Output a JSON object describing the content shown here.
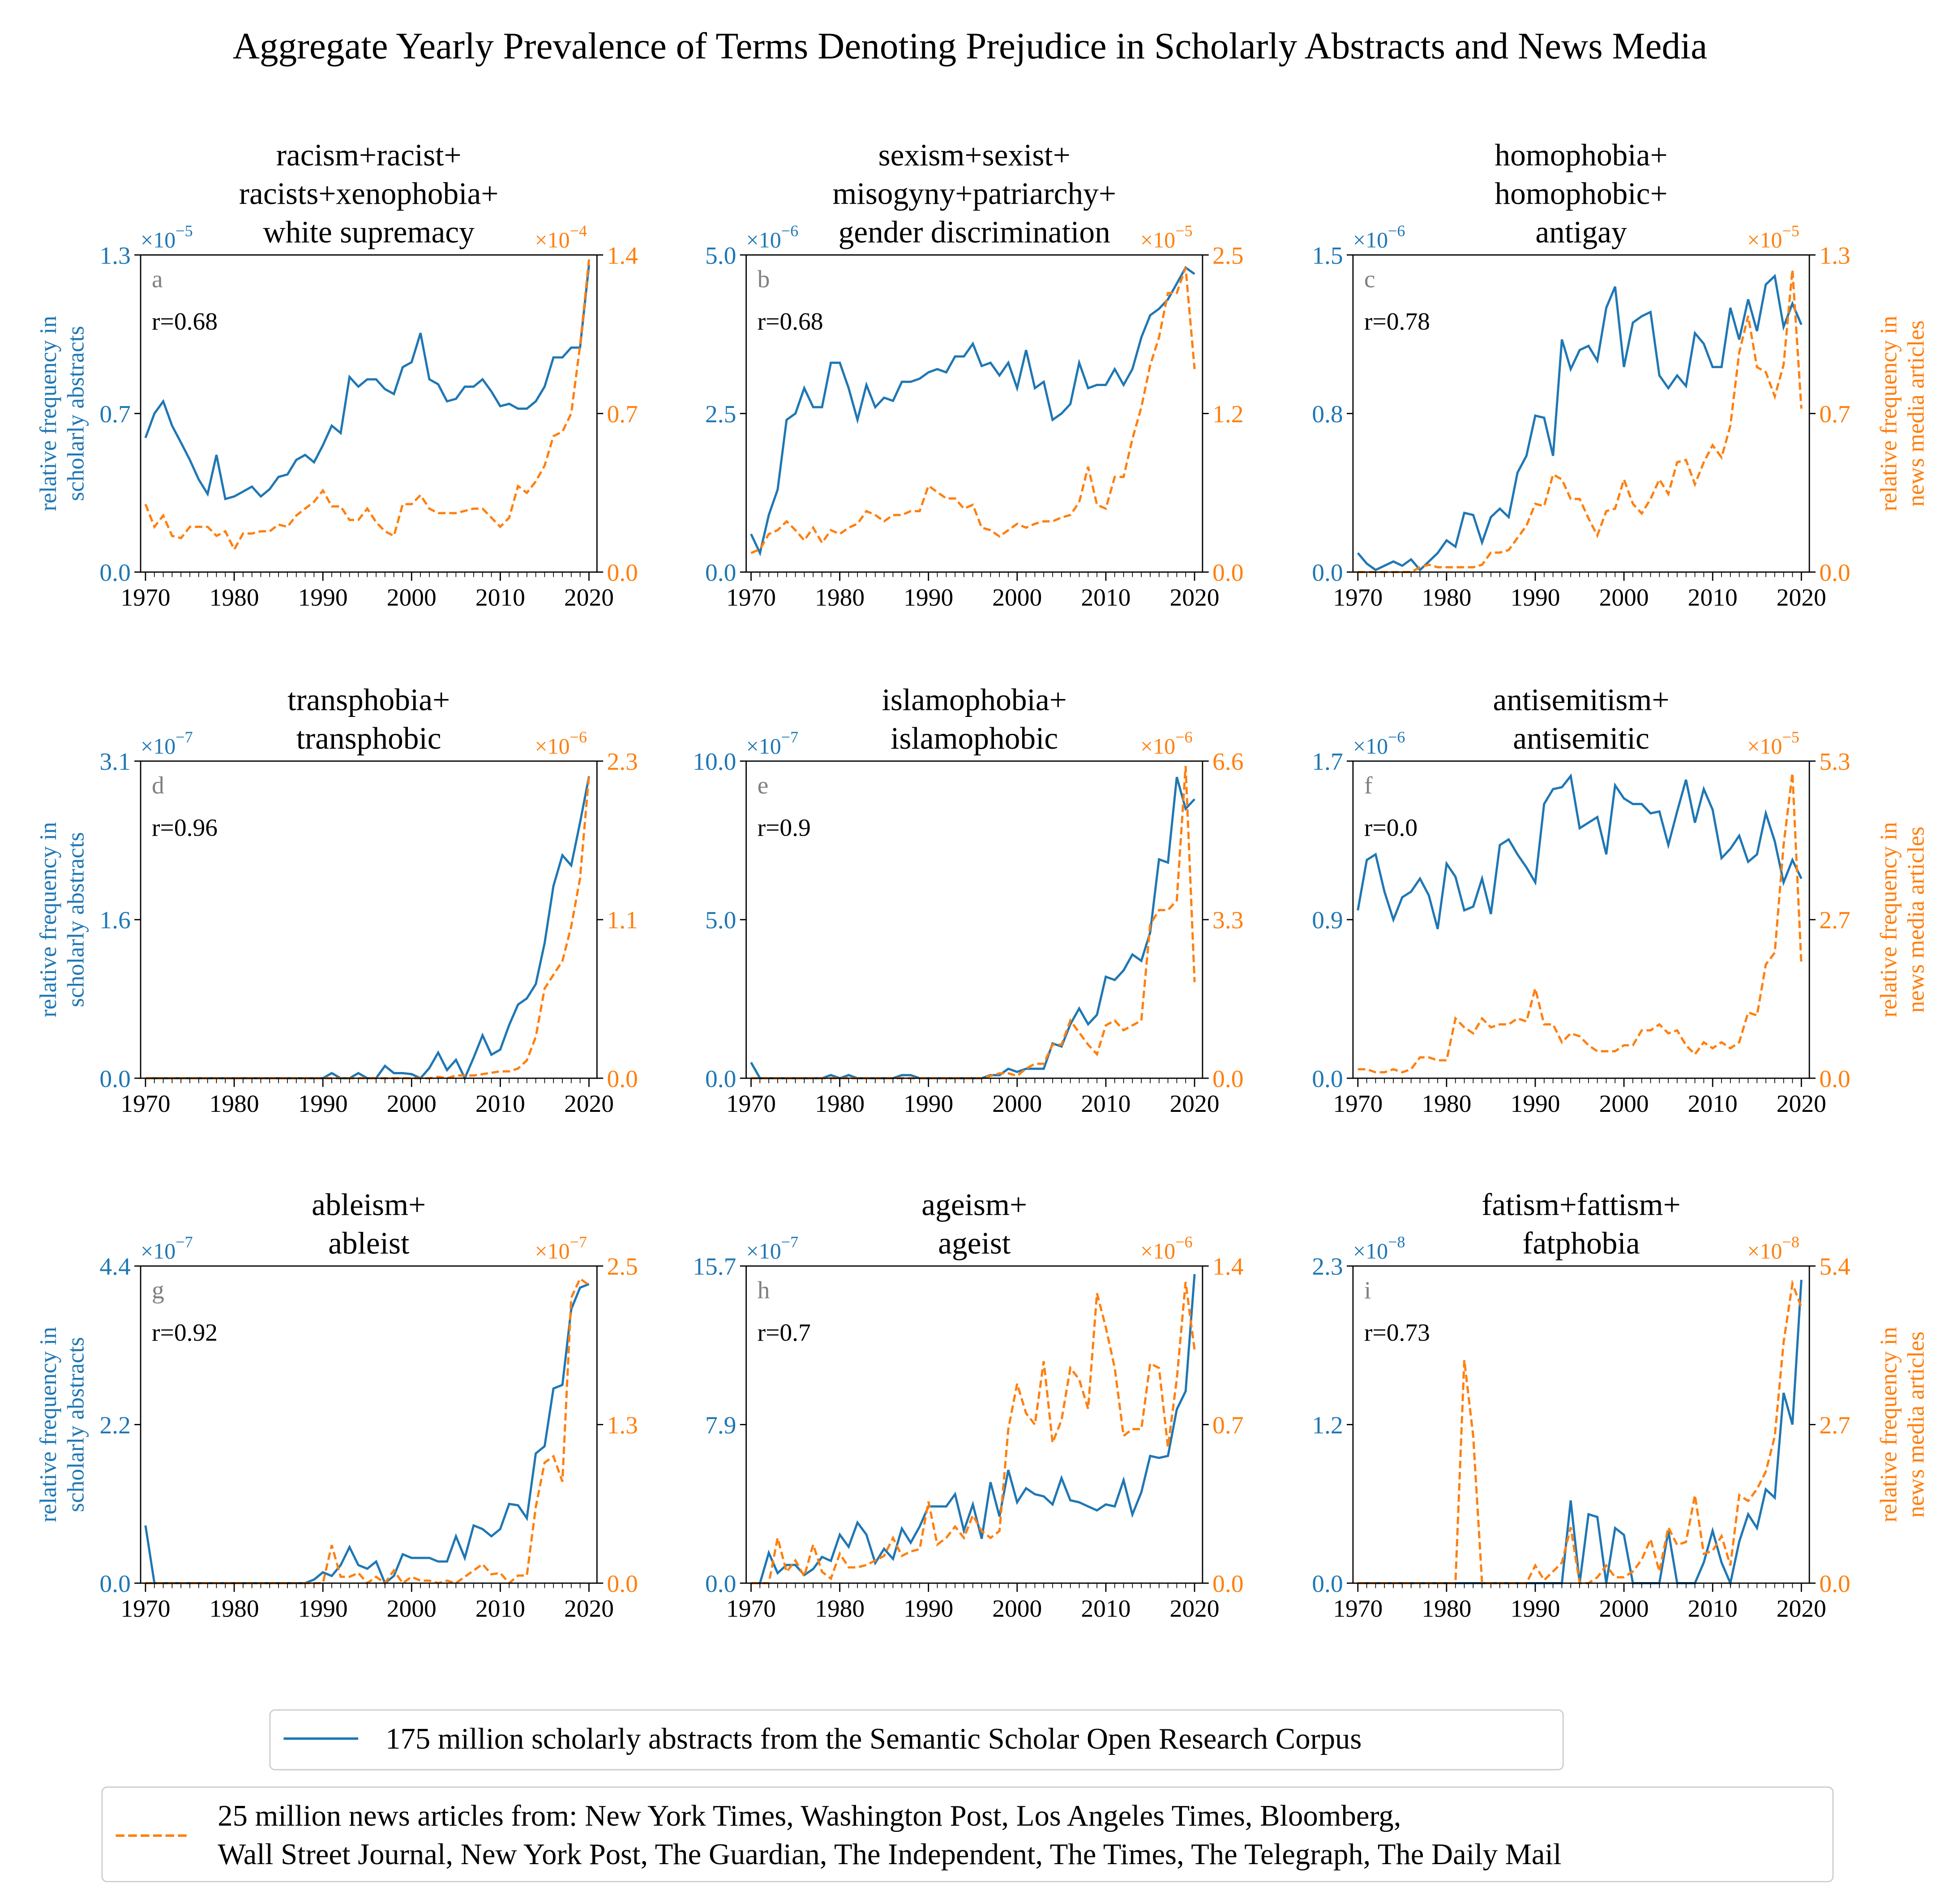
{
  "title": "Aggregate Yearly Prevalence of Terms Denoting Prejudice in Scholarly Abstracts and News Media",
  "colors": {
    "scholarly": "#1f77b4",
    "news": "#ff7f0e",
    "panel_letter": "#808080"
  },
  "axis_labels": {
    "left": [
      "relative frequency in",
      "scholarly abstracts"
    ],
    "right": [
      "relative frequency in",
      "news media articles"
    ]
  },
  "legend": {
    "scholarly": [
      "175 million scholarly abstracts from the Semantic Scholar Open Research Corpus"
    ],
    "news": [
      "25 million news articles from: New York Times, Washington Post, Los Angeles Times, Bloomberg,",
      "Wall Street Journal, New York Post, The Guardian, The Independent, The Times, The Telegraph, The Daily Mail"
    ]
  },
  "years": [
    1970,
    1971,
    1972,
    1973,
    1974,
    1975,
    1976,
    1977,
    1978,
    1979,
    1980,
    1981,
    1982,
    1983,
    1984,
    1985,
    1986,
    1987,
    1988,
    1989,
    1990,
    1991,
    1992,
    1993,
    1994,
    1995,
    1996,
    1997,
    1998,
    1999,
    2000,
    2001,
    2002,
    2003,
    2004,
    2005,
    2006,
    2007,
    2008,
    2009,
    2010,
    2011,
    2012,
    2013,
    2014,
    2015,
    2016,
    2017,
    2018,
    2019,
    2020
  ],
  "x_ticks": [
    "1970",
    "1980",
    "1990",
    "2000",
    "2010",
    "2020"
  ],
  "chart_data": [
    {
      "type": "line",
      "letter": "a",
      "r": "r=0.68",
      "title": [
        "racism+racist+",
        "racists+xenophobia+",
        "white supremacy"
      ],
      "left": {
        "exponent": "−5",
        "ticks": [
          "0.0",
          "0.7",
          "1.3"
        ],
        "ylim": [
          0,
          1.3
        ]
      },
      "right": {
        "exponent": "−4",
        "ticks": [
          "0.0",
          "0.7",
          "1.4"
        ],
        "ylim": [
          0,
          1.4
        ]
      },
      "scholarly": [
        0.55,
        0.65,
        0.7,
        0.6,
        0.53,
        0.46,
        0.38,
        0.32,
        0.48,
        0.3,
        0.31,
        0.33,
        0.35,
        0.31,
        0.34,
        0.39,
        0.4,
        0.46,
        0.48,
        0.45,
        0.52,
        0.6,
        0.57,
        0.8,
        0.76,
        0.79,
        0.79,
        0.75,
        0.73,
        0.84,
        0.86,
        0.98,
        0.79,
        0.77,
        0.7,
        0.71,
        0.76,
        0.76,
        0.79,
        0.74,
        0.68,
        0.69,
        0.67,
        0.67,
        0.7,
        0.76,
        0.88,
        0.88,
        0.92,
        0.92,
        1.26
      ],
      "news": [
        0.3,
        0.2,
        0.25,
        0.16,
        0.15,
        0.2,
        0.2,
        0.2,
        0.16,
        0.18,
        0.1,
        0.17,
        0.17,
        0.18,
        0.18,
        0.21,
        0.2,
        0.25,
        0.28,
        0.31,
        0.36,
        0.29,
        0.29,
        0.23,
        0.23,
        0.28,
        0.22,
        0.18,
        0.16,
        0.3,
        0.3,
        0.34,
        0.28,
        0.26,
        0.26,
        0.26,
        0.27,
        0.28,
        0.28,
        0.24,
        0.2,
        0.24,
        0.38,
        0.35,
        0.4,
        0.47,
        0.6,
        0.62,
        0.7,
        1.0,
        1.38
      ]
    },
    {
      "type": "line",
      "letter": "b",
      "r": "r=0.68",
      "title": [
        "sexism+sexist+",
        "misogyny+patriarchy+",
        "gender discrimination"
      ],
      "left": {
        "exponent": "−6",
        "ticks": [
          "0.0",
          "2.5",
          "5.0"
        ],
        "ylim": [
          0,
          5.0
        ]
      },
      "right": {
        "exponent": "−5",
        "ticks": [
          "0.0",
          "1.2",
          "2.5"
        ],
        "ylim": [
          0,
          2.5
        ]
      },
      "scholarly": [
        0.6,
        0.3,
        0.9,
        1.3,
        2.4,
        2.5,
        2.9,
        2.6,
        2.6,
        3.3,
        3.3,
        2.9,
        2.4,
        2.95,
        2.6,
        2.75,
        2.7,
        3.0,
        3.0,
        3.05,
        3.15,
        3.2,
        3.15,
        3.4,
        3.4,
        3.6,
        3.25,
        3.3,
        3.1,
        3.3,
        2.9,
        3.5,
        2.9,
        3.0,
        2.4,
        2.5,
        2.65,
        3.3,
        2.9,
        2.95,
        2.95,
        3.2,
        2.95,
        3.2,
        3.7,
        4.05,
        4.15,
        4.3,
        4.55,
        4.8,
        4.7
      ],
      "news": [
        0.15,
        0.18,
        0.3,
        0.33,
        0.4,
        0.33,
        0.25,
        0.35,
        0.23,
        0.33,
        0.3,
        0.35,
        0.38,
        0.48,
        0.45,
        0.4,
        0.45,
        0.45,
        0.48,
        0.48,
        0.68,
        0.63,
        0.58,
        0.58,
        0.5,
        0.53,
        0.35,
        0.33,
        0.28,
        0.33,
        0.38,
        0.35,
        0.38,
        0.4,
        0.4,
        0.43,
        0.45,
        0.55,
        0.83,
        0.53,
        0.5,
        0.75,
        0.75,
        1.05,
        1.3,
        1.63,
        1.85,
        2.2,
        2.2,
        2.4,
        1.6
      ]
    },
    {
      "type": "line",
      "letter": "c",
      "r": "r=0.78",
      "title": [
        "homophobia+",
        "homophobic+",
        "antigay"
      ],
      "left": {
        "exponent": "−6",
        "ticks": [
          "0.0",
          "0.8",
          "1.5"
        ],
        "ylim": [
          0,
          1.5
        ]
      },
      "right": {
        "exponent": "−5",
        "ticks": [
          "0.0",
          "0.7",
          "1.3"
        ],
        "ylim": [
          0,
          1.3
        ]
      },
      "scholarly": [
        0.09,
        0.04,
        0.01,
        0.03,
        0.05,
        0.03,
        0.06,
        0.01,
        0.05,
        0.09,
        0.15,
        0.12,
        0.28,
        0.27,
        0.14,
        0.26,
        0.3,
        0.26,
        0.47,
        0.55,
        0.74,
        0.73,
        0.55,
        1.1,
        0.96,
        1.05,
        1.07,
        1.0,
        1.25,
        1.35,
        0.97,
        1.18,
        1.21,
        1.23,
        0.93,
        0.87,
        0.93,
        0.88,
        1.13,
        1.08,
        0.97,
        0.97,
        1.25,
        1.1,
        1.29,
        1.14,
        1.36,
        1.4,
        1.16,
        1.27,
        1.17
      ],
      "news": [
        0,
        0,
        0,
        0,
        0,
        0,
        0,
        0.02,
        0.03,
        0.02,
        0.02,
        0.02,
        0.02,
        0.02,
        0.03,
        0.08,
        0.08,
        0.09,
        0.14,
        0.19,
        0.28,
        0.27,
        0.4,
        0.38,
        0.3,
        0.3,
        0.22,
        0.15,
        0.25,
        0.26,
        0.38,
        0.28,
        0.24,
        0.3,
        0.38,
        0.32,
        0.45,
        0.46,
        0.36,
        0.45,
        0.52,
        0.47,
        0.6,
        0.9,
        1.05,
        0.84,
        0.82,
        0.72,
        0.85,
        1.24,
        0.67
      ]
    },
    {
      "type": "line",
      "letter": "d",
      "r": "r=0.96",
      "title": [
        "transphobia+",
        "transphobic"
      ],
      "left": {
        "exponent": "−7",
        "ticks": [
          "0.0",
          "1.6",
          "3.1"
        ],
        "ylim": [
          0,
          3.1
        ]
      },
      "right": {
        "exponent": "−6",
        "ticks": [
          "0.0",
          "1.1",
          "2.3"
        ],
        "ylim": [
          0,
          2.3
        ]
      },
      "scholarly": [
        0,
        0,
        0,
        0,
        0,
        0,
        0,
        0,
        0,
        0,
        0,
        0,
        0,
        0,
        0,
        0,
        0,
        0,
        0,
        0,
        0,
        0.05,
        0,
        0,
        0.05,
        0,
        0,
        0.12,
        0.05,
        0.05,
        0.04,
        0,
        0.1,
        0.25,
        0.08,
        0.18,
        0,
        0.2,
        0.42,
        0.23,
        0.28,
        0.52,
        0.72,
        0.78,
        0.92,
        1.32,
        1.88,
        2.18,
        2.08,
        2.5,
        2.95
      ],
      "news": [
        0,
        0,
        0,
        0,
        0,
        0,
        0,
        0,
        0,
        0,
        0,
        0,
        0,
        0,
        0,
        0,
        0,
        0,
        0,
        0,
        0,
        0,
        0,
        0,
        0,
        0,
        0,
        0,
        0,
        0,
        0,
        0,
        0,
        0.01,
        0,
        0.02,
        0.02,
        0.02,
        0.03,
        0.04,
        0.05,
        0.05,
        0.07,
        0.13,
        0.3,
        0.65,
        0.75,
        0.85,
        1.1,
        1.45,
        2.2
      ]
    },
    {
      "type": "line",
      "letter": "e",
      "r": "r=0.9",
      "title": [
        "islamophobia+",
        "islamophobic"
      ],
      "left": {
        "exponent": "−7",
        "ticks": [
          "0.0",
          "5.0",
          "10.0"
        ],
        "ylim": [
          0,
          10.0
        ]
      },
      "right": {
        "exponent": "−6",
        "ticks": [
          "0.0",
          "3.3",
          "6.6"
        ],
        "ylim": [
          0,
          6.6
        ]
      },
      "scholarly": [
        0.5,
        0,
        0,
        0,
        0,
        0,
        0,
        0,
        0,
        0.1,
        0,
        0.1,
        0,
        0,
        0,
        0,
        0,
        0.1,
        0.1,
        0,
        0,
        0,
        0,
        0,
        0,
        0,
        0,
        0.1,
        0.1,
        0.3,
        0.2,
        0.3,
        0.3,
        0.3,
        1.1,
        1.0,
        1.7,
        2.2,
        1.7,
        2.0,
        3.2,
        3.1,
        3.4,
        3.9,
        3.7,
        4.6,
        6.9,
        6.8,
        9.5,
        8.5,
        8.8
      ],
      "news": [
        0,
        0,
        0,
        0,
        0,
        0,
        0,
        0,
        0,
        0,
        0,
        0,
        0,
        0,
        0,
        0,
        0,
        0,
        0,
        0,
        0,
        0,
        0,
        0,
        0,
        0,
        0,
        0.05,
        0.1,
        0.1,
        0.05,
        0.2,
        0.3,
        0.3,
        0.7,
        0.7,
        1.2,
        0.95,
        0.7,
        0.5,
        1.1,
        1.2,
        1.0,
        1.1,
        1.2,
        3.2,
        3.5,
        3.5,
        3.7,
        6.5,
        2.0
      ]
    },
    {
      "type": "line",
      "letter": "f",
      "r": "r=0.0",
      "title": [
        "antisemitism+",
        "antisemitic"
      ],
      "left": {
        "exponent": "−6",
        "ticks": [
          "0.0",
          "0.9",
          "1.7"
        ],
        "ylim": [
          0,
          1.7
        ]
      },
      "right": {
        "exponent": "−5",
        "ticks": [
          "0.0",
          "2.7",
          "5.3"
        ],
        "ylim": [
          0,
          5.3
        ]
      },
      "scholarly": [
        0.9,
        1.17,
        1.2,
        1.0,
        0.85,
        0.97,
        1.0,
        1.07,
        0.98,
        0.8,
        1.15,
        1.08,
        0.9,
        0.92,
        1.07,
        0.88,
        1.25,
        1.28,
        1.2,
        1.13,
        1.05,
        1.47,
        1.55,
        1.56,
        1.62,
        1.34,
        1.37,
        1.4,
        1.2,
        1.57,
        1.5,
        1.47,
        1.47,
        1.42,
        1.43,
        1.25,
        1.43,
        1.6,
        1.37,
        1.55,
        1.44,
        1.18,
        1.23,
        1.3,
        1.16,
        1.2,
        1.42,
        1.27,
        1.05,
        1.17,
        1.07
      ],
      "news": [
        0.15,
        0.15,
        0.1,
        0.1,
        0.15,
        0.1,
        0.15,
        0.35,
        0.35,
        0.3,
        0.3,
        1.0,
        0.85,
        0.75,
        1.0,
        0.85,
        0.9,
        0.9,
        1.0,
        0.95,
        1.5,
        0.9,
        0.9,
        0.6,
        0.75,
        0.7,
        0.55,
        0.45,
        0.45,
        0.45,
        0.55,
        0.55,
        0.8,
        0.8,
        0.9,
        0.75,
        0.8,
        0.55,
        0.4,
        0.6,
        0.5,
        0.6,
        0.5,
        0.6,
        1.1,
        1.05,
        1.9,
        2.1,
        3.9,
        5.1,
        1.9
      ]
    },
    {
      "type": "line",
      "letter": "g",
      "r": "r=0.92",
      "title": [
        "ableism+",
        "ableist"
      ],
      "left": {
        "exponent": "−7",
        "ticks": [
          "0.0",
          "2.2",
          "4.4"
        ],
        "ylim": [
          0,
          4.4
        ]
      },
      "right": {
        "exponent": "−7",
        "ticks": [
          "0.0",
          "1.3",
          "2.5"
        ],
        "ylim": [
          0,
          2.5
        ]
      },
      "scholarly": [
        0.8,
        0,
        0,
        0,
        0,
        0,
        0,
        0,
        0,
        0,
        0,
        0,
        0,
        0,
        0,
        0,
        0,
        0,
        0,
        0.05,
        0.15,
        0.1,
        0.25,
        0.5,
        0.25,
        0.2,
        0.3,
        0,
        0.1,
        0.4,
        0.35,
        0.35,
        0.35,
        0.3,
        0.3,
        0.65,
        0.35,
        0.8,
        0.75,
        0.65,
        0.75,
        1.1,
        1.08,
        0.9,
        1.8,
        1.9,
        2.7,
        2.75,
        3.8,
        4.1,
        4.15
      ],
      "news": [
        0,
        0,
        0,
        0,
        0,
        0,
        0,
        0,
        0,
        0,
        0,
        0,
        0,
        0,
        0,
        0,
        0,
        0,
        0,
        0,
        0,
        0.3,
        0.05,
        0.05,
        0.08,
        0,
        0.05,
        0,
        0.1,
        0,
        0.05,
        0.02,
        0.02,
        0,
        0.02,
        0,
        0.05,
        0.1,
        0.15,
        0.07,
        0.08,
        0,
        0.06,
        0.06,
        0.6,
        0.95,
        1.0,
        0.8,
        2.25,
        2.4,
        2.35
      ]
    },
    {
      "type": "line",
      "letter": "h",
      "r": "r=0.7",
      "title": [
        "ageism+",
        "ageist"
      ],
      "left": {
        "exponent": "−7",
        "ticks": [
          "0.0",
          "7.9",
          "15.7"
        ],
        "ylim": [
          0,
          15.7
        ]
      },
      "right": {
        "exponent": "−6",
        "ticks": [
          "0.0",
          "0.7",
          "1.4"
        ],
        "ylim": [
          0,
          1.4
        ]
      },
      "scholarly": [
        0,
        0,
        1.5,
        0.5,
        0.9,
        0.9,
        0.4,
        0.7,
        1.3,
        1.1,
        2.4,
        1.8,
        3.0,
        2.4,
        1.0,
        1.7,
        1.2,
        2.7,
        2.0,
        2.8,
        3.8,
        3.8,
        3.8,
        4.4,
        2.6,
        3.9,
        2.2,
        5.0,
        3.3,
        5.6,
        4.0,
        4.7,
        4.4,
        4.3,
        3.9,
        5.2,
        4.1,
        4.0,
        3.8,
        3.6,
        3.9,
        3.8,
        5.1,
        3.4,
        4.5,
        6.3,
        6.2,
        6.3,
        8.6,
        9.5,
        15.3
      ],
      "news": [
        0,
        0,
        0,
        0.2,
        0.05,
        0.1,
        0.03,
        0.17,
        0.05,
        0.02,
        0.13,
        0.07,
        0.07,
        0.08,
        0.1,
        0.12,
        0.2,
        0.12,
        0.14,
        0.15,
        0.36,
        0.17,
        0.2,
        0.25,
        0.2,
        0.3,
        0.23,
        0.2,
        0.23,
        0.68,
        0.88,
        0.75,
        0.7,
        0.98,
        0.62,
        0.72,
        0.95,
        0.9,
        0.77,
        1.28,
        1.13,
        0.95,
        0.65,
        0.68,
        0.68,
        0.97,
        0.95,
        0.6,
        0.9,
        1.33,
        1.03
      ]
    },
    {
      "type": "line",
      "letter": "i",
      "r": "r=0.73",
      "title": [
        "fatism+fattism+",
        "fatphobia"
      ],
      "left": {
        "exponent": "−8",
        "ticks": [
          "0.0",
          "1.2",
          "2.3"
        ],
        "ylim": [
          0,
          2.3
        ]
      },
      "right": {
        "exponent": "−8",
        "ticks": [
          "0.0",
          "2.7",
          "5.4"
        ],
        "ylim": [
          0,
          5.4
        ]
      },
      "scholarly": [
        0,
        0,
        0,
        0,
        0,
        0,
        0,
        0,
        0,
        0,
        0,
        0,
        0,
        0,
        0,
        0,
        0,
        0,
        0,
        0,
        0,
        0,
        0,
        0,
        0.6,
        0,
        0.5,
        0.48,
        0,
        0.4,
        0.35,
        0,
        0,
        0,
        0,
        0.38,
        0,
        0,
        0,
        0.15,
        0.38,
        0.15,
        0,
        0.3,
        0.5,
        0.4,
        0.68,
        0.62,
        1.38,
        1.15,
        2.2
      ],
      "news": [
        0,
        0,
        0,
        0,
        0,
        0,
        0,
        0,
        0,
        0,
        0,
        0,
        3.8,
        2.5,
        0,
        0,
        0,
        0,
        0,
        0,
        0.3,
        0.05,
        0.2,
        0.35,
        0.95,
        0,
        0,
        0.1,
        0.3,
        0.1,
        0.1,
        0.2,
        0.4,
        0.75,
        0.2,
        0.95,
        0.65,
        0.7,
        1.5,
        0.5,
        0.55,
        0.8,
        0.3,
        1.5,
        1.4,
        1.6,
        1.9,
        2.5,
        4.1,
        5.1,
        4.7
      ]
    }
  ]
}
